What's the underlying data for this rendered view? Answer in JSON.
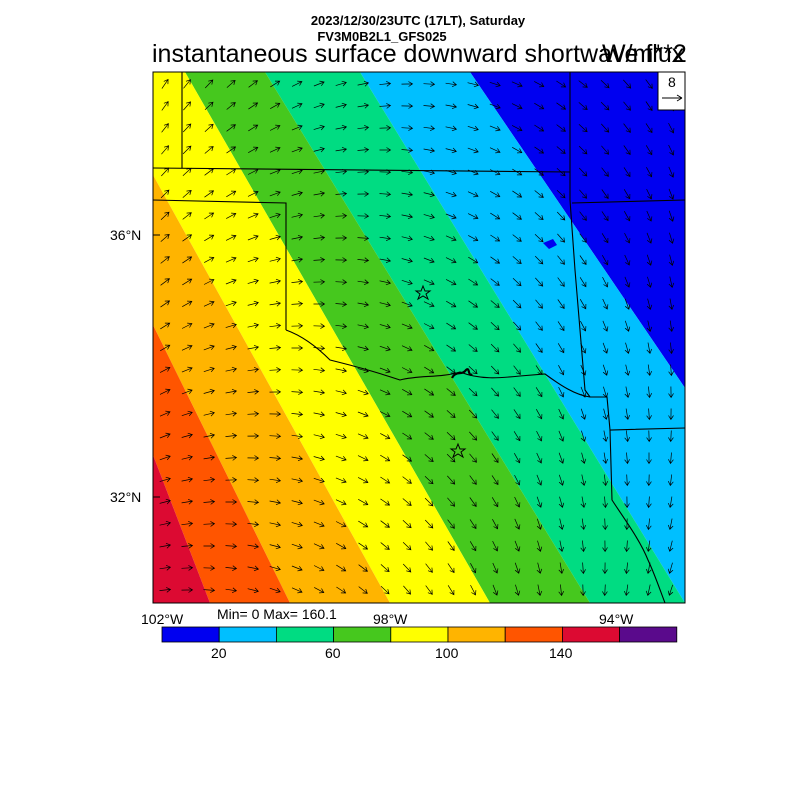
{
  "header": {
    "date_line": "2023/12/30/23UTC (17LT), Saturday",
    "model_line": "FV3M0B2L1_GFS025",
    "title": "instantaneous surface downward shortwave flux",
    "units": "W/m**2"
  },
  "vector_reference": {
    "label": "8"
  },
  "axes": {
    "lat_labels": [
      "36°N",
      "32°N"
    ],
    "lon_labels": [
      "102°W",
      "98°W",
      "94°W"
    ]
  },
  "stats": {
    "text": "Min= 0 Max= 160.1"
  },
  "colorbar": {
    "colors": [
      "#0000f0",
      "#00bfff",
      "#00dc82",
      "#46c81e",
      "#ffff00",
      "#ffb400",
      "#ff5500",
      "#dc0a32",
      "#5a0a8c"
    ],
    "labels": [
      "20",
      "60",
      "100",
      "140"
    ]
  },
  "chart_data": {
    "type": "heatmap",
    "title": "instantaneous surface downward shortwave flux",
    "units": "W/m**2",
    "min": 0,
    "max": 160.1,
    "levels": [
      20,
      40,
      60,
      80,
      100,
      120,
      140,
      160
    ],
    "lat_ticks": [
      36,
      32
    ],
    "lon_ticks": [
      -102,
      -98,
      -94
    ],
    "markers": [
      "star",
      "star"
    ]
  }
}
